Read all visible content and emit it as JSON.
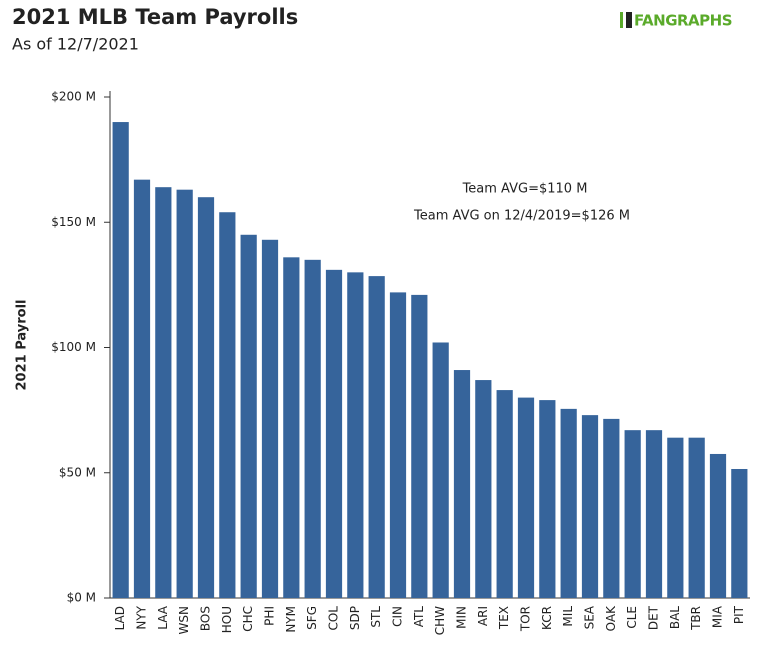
{
  "chart_data": {
    "type": "bar",
    "title": "2021 MLB Team Payrolls",
    "subtitle": "As of 12/7/2021",
    "logo": "FANGRAPHS",
    "y_label": "2021 Payroll",
    "annotations": [
      "Team AVG=$110 M",
      "Team AVG on 12/4/2019=$126 M"
    ],
    "categories": [
      "LAD",
      "NYY",
      "LAA",
      "WSN",
      "BOS",
      "HOU",
      "CHC",
      "PHI",
      "NYM",
      "SFG",
      "COL",
      "SDP",
      "STL",
      "CIN",
      "ATL",
      "CHW",
      "MIN",
      "ARI",
      "TEX",
      "TOR",
      "KCR",
      "MIL",
      "SEA",
      "OAK",
      "CLE",
      "DET",
      "BAL",
      "TBR",
      "MIA",
      "PIT"
    ],
    "values": [
      190,
      167,
      164,
      163,
      160,
      154,
      145,
      143,
      136,
      135,
      131,
      130,
      128.5,
      122,
      121,
      102,
      91,
      87,
      83,
      80,
      79,
      75.5,
      73,
      71.5,
      67,
      67,
      64,
      64,
      57.5,
      51.5
    ],
    "color": "#36649b",
    "ylim": [
      0,
      200
    ],
    "yticks": [
      {
        "value": 0,
        "label": "$0 M"
      },
      {
        "value": 50,
        "label": "$50 M"
      },
      {
        "value": 100,
        "label": "$100 M"
      },
      {
        "value": 150,
        "label": "$150 M"
      },
      {
        "value": 200,
        "label": "$200 M"
      }
    ],
    "grid": false
  }
}
